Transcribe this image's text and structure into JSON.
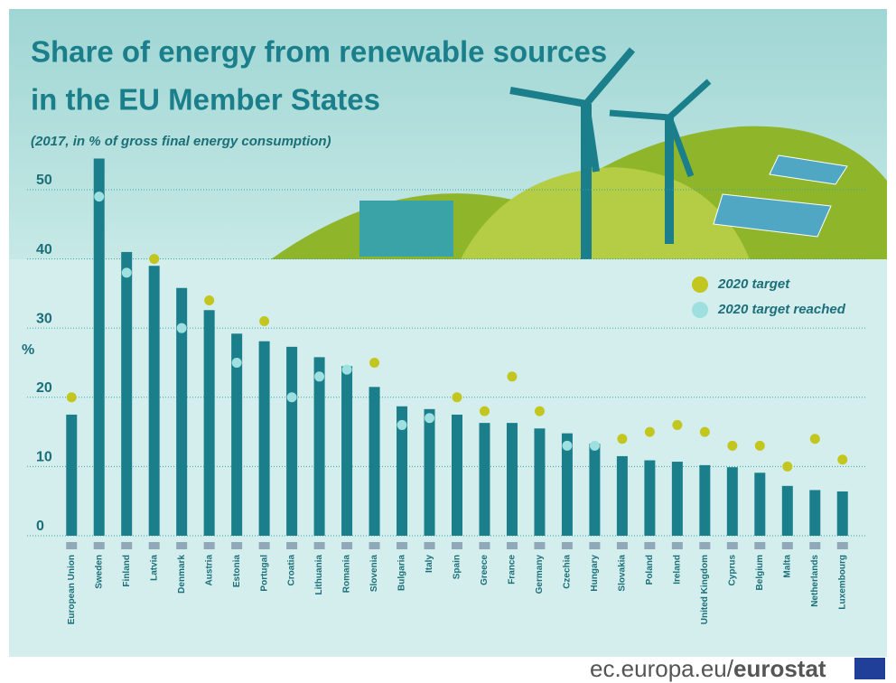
{
  "chart_data": {
    "type": "bar",
    "title": [
      "Share of energy from renewable sources",
      "in the EU Member States"
    ],
    "subtitle": "(2017, in % of gross final energy consumption)",
    "y_label": "%",
    "categories": [
      "European Union",
      "Sweden",
      "Finland",
      "Latvia",
      "Denmark",
      "Austria",
      "Estonia",
      "Portugal",
      "Croatia",
      "Lithuania",
      "Romania",
      "Slovenia",
      "Bulgaria",
      "Italy",
      "Spain",
      "Greece",
      "France",
      "Germany",
      "Czechia",
      "Hungary",
      "Slovakia",
      "Poland",
      "Ireland",
      "United Kingdom",
      "Cyprus",
      "Belgium",
      "Malta",
      "Netherlands",
      "Luxembourg"
    ],
    "values": [
      17.5,
      54.5,
      41.0,
      39.0,
      35.8,
      32.6,
      29.2,
      28.1,
      27.3,
      25.8,
      24.5,
      21.5,
      18.7,
      18.3,
      17.5,
      16.3,
      16.3,
      15.5,
      14.8,
      13.3,
      11.5,
      10.9,
      10.7,
      10.2,
      9.9,
      9.1,
      7.2,
      6.6,
      6.4
    ],
    "color": "#1b7f8b",
    "series": [
      {
        "name": "2020 target",
        "color": "#c3c61e",
        "values": [
          20,
          null,
          null,
          40,
          null,
          34,
          null,
          31,
          null,
          null,
          null,
          25,
          null,
          null,
          20,
          18,
          23,
          18,
          null,
          null,
          14,
          15,
          16,
          15,
          13,
          13,
          10,
          14,
          11
        ]
      },
      {
        "name": "2020 target reached",
        "color": "#9edfe0",
        "values": [
          null,
          49,
          38,
          null,
          30,
          null,
          25,
          null,
          20,
          23,
          24,
          null,
          16,
          17,
          null,
          null,
          null,
          null,
          13,
          13,
          null,
          null,
          null,
          null,
          null,
          null,
          null,
          null,
          null
        ]
      }
    ],
    "ylim": [
      0,
      56
    ],
    "yticks": [
      0,
      10,
      20,
      30,
      40,
      50
    ],
    "grid": true,
    "source": [
      "ec.europa.eu/",
      "eurostat"
    ]
  }
}
